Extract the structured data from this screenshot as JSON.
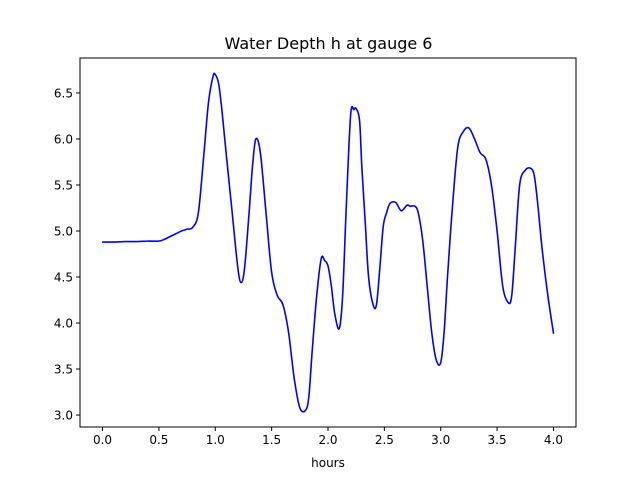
{
  "chart_data": {
    "type": "line",
    "title": "Water Depth h at gauge 6",
    "xlabel": "hours",
    "ylabel": "",
    "xlim": [
      -0.2,
      4.2
    ],
    "ylim": [
      2.87,
      6.88
    ],
    "x_ticks": [
      0.0,
      0.5,
      1.0,
      1.5,
      2.0,
      2.5,
      3.0,
      3.5,
      4.0
    ],
    "x_tick_labels": [
      "0.0",
      "0.5",
      "1.0",
      "1.5",
      "2.0",
      "2.5",
      "3.0",
      "3.5",
      "4.0"
    ],
    "y_ticks": [
      3.0,
      3.5,
      4.0,
      4.5,
      5.0,
      5.5,
      6.0,
      6.5
    ],
    "y_tick_labels": [
      "3.0",
      "3.5",
      "4.0",
      "4.5",
      "5.0",
      "5.5",
      "6.0",
      "6.5"
    ],
    "grid": false,
    "series": [
      {
        "color": "#0000ff",
        "x": [
          0.0,
          0.1,
          0.2,
          0.3,
          0.4,
          0.5,
          0.55,
          0.6,
          0.65,
          0.7,
          0.75,
          0.8,
          0.85,
          0.9,
          0.94,
          0.98,
          1.0,
          1.03,
          1.06,
          1.1,
          1.15,
          1.2,
          1.23,
          1.26,
          1.3,
          1.33,
          1.36,
          1.4,
          1.45,
          1.5,
          1.55,
          1.6,
          1.65,
          1.7,
          1.75,
          1.8,
          1.83,
          1.86,
          1.9,
          1.94,
          1.97,
          2.0,
          2.03,
          2.06,
          2.1,
          2.13,
          2.16,
          2.2,
          2.23,
          2.25,
          2.28,
          2.3,
          2.33,
          2.36,
          2.4,
          2.43,
          2.46,
          2.49,
          2.52,
          2.55,
          2.6,
          2.65,
          2.7,
          2.73,
          2.77,
          2.8,
          2.84,
          2.88,
          2.92,
          2.96,
          3.0,
          3.03,
          3.06,
          3.1,
          3.15,
          3.2,
          3.25,
          3.3,
          3.35,
          3.4,
          3.45,
          3.5,
          3.55,
          3.6,
          3.63,
          3.66,
          3.7,
          3.75,
          3.8,
          3.83,
          3.86,
          3.9,
          3.95,
          4.0
        ],
        "values": [
          4.88,
          4.88,
          4.885,
          4.885,
          4.89,
          4.89,
          4.91,
          4.94,
          4.97,
          5.0,
          5.02,
          5.04,
          5.2,
          5.85,
          6.4,
          6.68,
          6.7,
          6.6,
          6.3,
          5.8,
          5.2,
          4.6,
          4.44,
          4.6,
          5.2,
          5.7,
          6.0,
          5.85,
          5.2,
          4.55,
          4.3,
          4.2,
          3.9,
          3.4,
          3.08,
          3.05,
          3.2,
          3.7,
          4.3,
          4.7,
          4.68,
          4.62,
          4.4,
          4.1,
          3.94,
          4.3,
          5.2,
          6.25,
          6.32,
          6.33,
          6.2,
          5.7,
          5.1,
          4.5,
          4.2,
          4.2,
          4.6,
          5.05,
          5.2,
          5.3,
          5.31,
          5.22,
          5.28,
          5.27,
          5.27,
          5.2,
          4.9,
          4.4,
          3.9,
          3.6,
          3.57,
          3.9,
          4.5,
          5.2,
          5.9,
          6.08,
          6.12,
          6.0,
          5.85,
          5.78,
          5.5,
          5.0,
          4.4,
          4.22,
          4.3,
          4.8,
          5.5,
          5.66,
          5.68,
          5.6,
          5.3,
          4.8,
          4.3,
          3.89
        ]
      }
    ]
  }
}
